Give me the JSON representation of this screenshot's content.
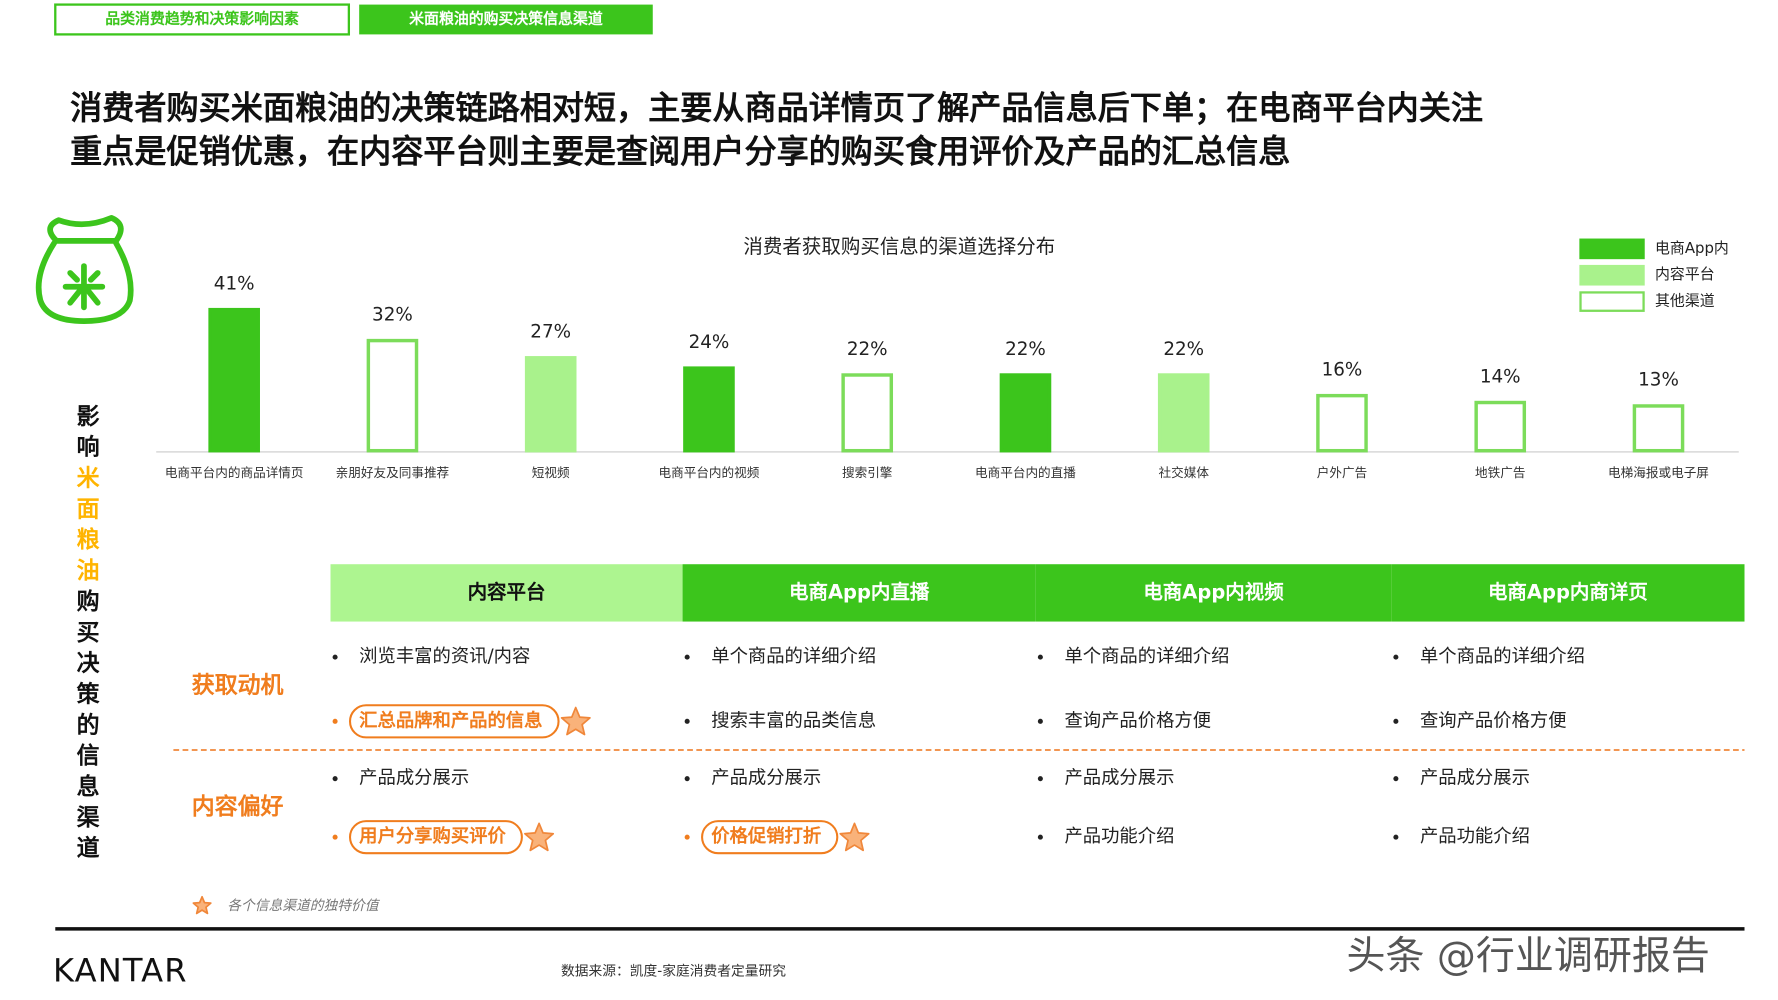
{
  "tabs": [
    "品类消费趋势和决策影响因素",
    "米面粮油的购买决策信息渠道"
  ],
  "headline": [
    "消费者购买米面粮油的决策链路相对短，主要从商品详情页了解产品信息后下单；在电商平台内关注",
    "重点是促销优惠，在内容平台则主要是查阅用户分享的购买食用评价及产品的汇总信息"
  ],
  "side_title": [
    "影响",
    "米面粮油",
    "购买决策的信息渠道"
  ],
  "chart_data": {
    "type": "bar",
    "title": "消费者获取购买信息的渠道选择分布",
    "categories": [
      "电商平台内的商品详情页",
      "亲朋好友及同事推荐",
      "短视频",
      "电商平台内的视频",
      "搜索引擎",
      "电商平台内的直播",
      "社交媒体",
      "户外广告",
      "地铁广告",
      "电梯海报或电子屏"
    ],
    "ylim": [
      0,
      50
    ],
    "legend": "top-right",
    "series": [
      {
        "name": "电商App内",
        "color": "#3cc51c",
        "stroke": "#3cc51c",
        "values": [
          41,
          null,
          null,
          24,
          null,
          22,
          null,
          null,
          null,
          null
        ],
        "value_labels": [
          "41%",
          null,
          null,
          "24%",
          null,
          "22%",
          null,
          null,
          null,
          null
        ]
      },
      {
        "name": "内容平台",
        "color": "#a9f28c",
        "stroke": "#a9f28c",
        "values": [
          null,
          null,
          27,
          null,
          null,
          null,
          22,
          null,
          null,
          null
        ],
        "value_labels": [
          null,
          null,
          "27%",
          null,
          null,
          null,
          "22%",
          null,
          null,
          null
        ]
      },
      {
        "name": "其他渠道",
        "color": "#ffffff",
        "stroke": "#7cdc5a",
        "values": [
          null,
          32,
          null,
          null,
          22,
          null,
          null,
          16,
          14,
          13
        ],
        "value_labels": [
          null,
          "32%",
          null,
          null,
          "22%",
          null,
          null,
          "16%",
          "14%",
          "13%"
        ]
      }
    ]
  },
  "table": {
    "columns": [
      "内容平台",
      "电商App内直播",
      "电商App内视频",
      "电商App内商详页"
    ],
    "rows": [
      {
        "label": "获取动机",
        "cells": [
          [
            {
              "text": "浏览丰富的资讯/内容"
            },
            {
              "text": "汇总品牌和产品的信息",
              "highlight": true
            }
          ],
          [
            {
              "text": "单个商品的详细介绍"
            },
            {
              "text": "搜索丰富的品类信息"
            }
          ],
          [
            {
              "text": "单个商品的详细介绍"
            },
            {
              "text": "查询产品价格方便"
            }
          ],
          [
            {
              "text": "单个商品的详细介绍"
            },
            {
              "text": "查询产品价格方便"
            }
          ]
        ]
      },
      {
        "label": "内容偏好",
        "cells": [
          [
            {
              "text": "产品成分展示"
            },
            {
              "text": "用户分享购买评价",
              "highlight": true
            }
          ],
          [
            {
              "text": "产品成分展示"
            },
            {
              "text": "价格促销打折",
              "highlight": true
            }
          ],
          [
            {
              "text": "产品成分展示"
            },
            {
              "text": "产品功能介绍"
            }
          ],
          [
            {
              "text": "产品成分展示"
            },
            {
              "text": "产品功能介绍"
            }
          ]
        ]
      }
    ]
  },
  "footnote": "各个信息渠道的独特价值",
  "footer": {
    "brand": "KANTAR",
    "source": "数据来源：凯度-家庭消费者定量研究",
    "watermark": "头条 @行业调研报告"
  }
}
